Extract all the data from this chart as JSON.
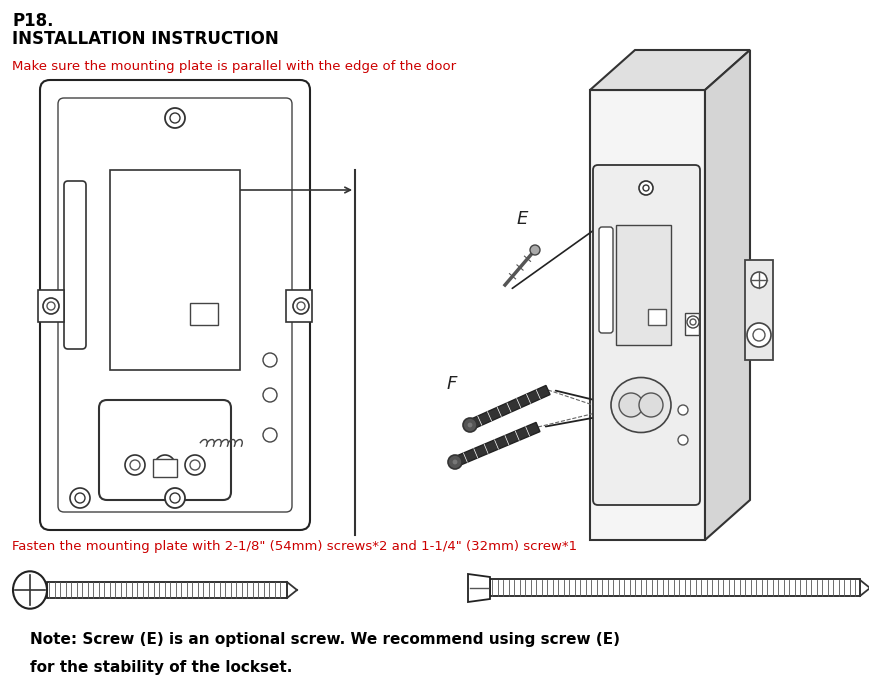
{
  "title_line1": "P18.",
  "title_line2": "INSTALLATION INSTRUCTION",
  "red_text_top": "Make sure the mounting plate is parallel with the edge of the door",
  "red_text_bottom": "Fasten the mounting plate with 2-1/8\" (54mm) screws*2 and 1-1/4\" (32mm) screw*1",
  "note_line1": "Note: Screw (E) is an optional screw. We recommend using screw (E)",
  "note_line2": "for the stability of the lockset.",
  "bg_color": "#ffffff",
  "title_color": "#000000",
  "red_color": "#cc0000",
  "note_color": "#000000",
  "label_E": "E",
  "label_F": "F",
  "fig_w": 8.69,
  "fig_h": 6.95,
  "dpi": 100
}
